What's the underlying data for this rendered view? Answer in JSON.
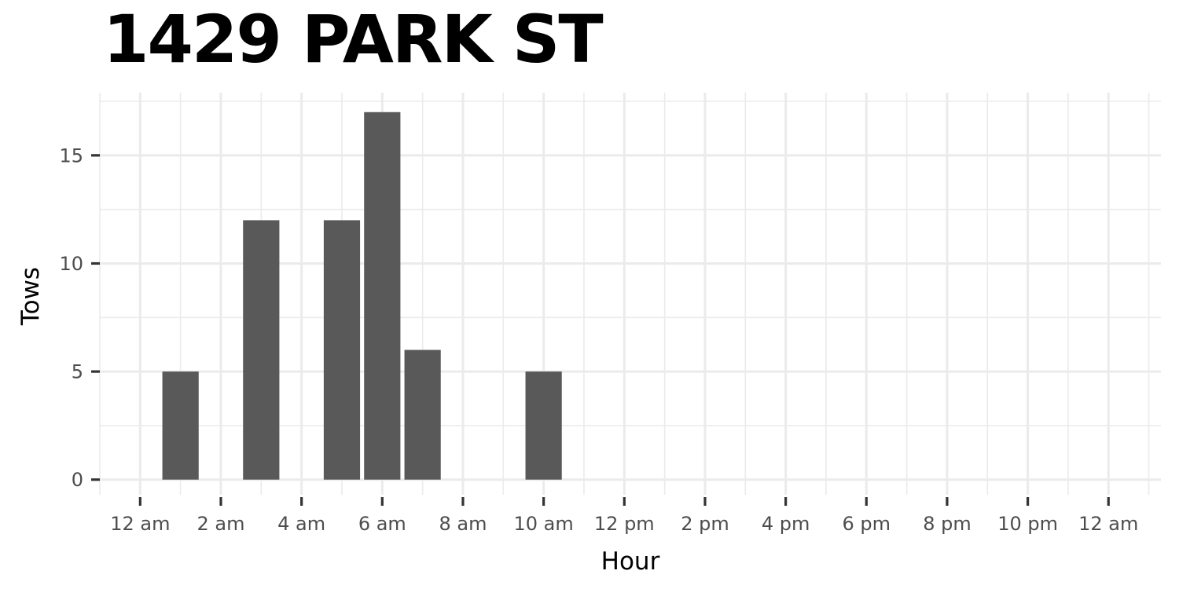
{
  "chart_data": {
    "type": "bar",
    "title": "1429 PARK ST",
    "xlabel": "Hour",
    "ylabel": "Tows",
    "x_tick_labels": [
      "12 am",
      "2 am",
      "4 am",
      "6 am",
      "8 am",
      "10 am",
      "12 pm",
      "2 pm",
      "4 pm",
      "6 pm",
      "8 pm",
      "10 pm",
      "12 am"
    ],
    "x_tick_hours": [
      0,
      2,
      4,
      6,
      8,
      10,
      12,
      14,
      16,
      18,
      20,
      22,
      24
    ],
    "xlim": [
      -1,
      25.3
    ],
    "y_ticks": [
      0,
      5,
      10,
      15
    ],
    "ylim": [
      -0.7,
      17.9
    ],
    "series": [
      {
        "hours": [
          1,
          3,
          5,
          6,
          7,
          10
        ],
        "values": [
          5,
          12,
          12,
          17,
          6,
          5
        ]
      }
    ],
    "grid": true,
    "colors": {
      "bar": "#595959",
      "grid": "#ebebeb",
      "axis_text": "#4d4d4d",
      "tick": "#333333",
      "background": "#ffffff"
    }
  }
}
